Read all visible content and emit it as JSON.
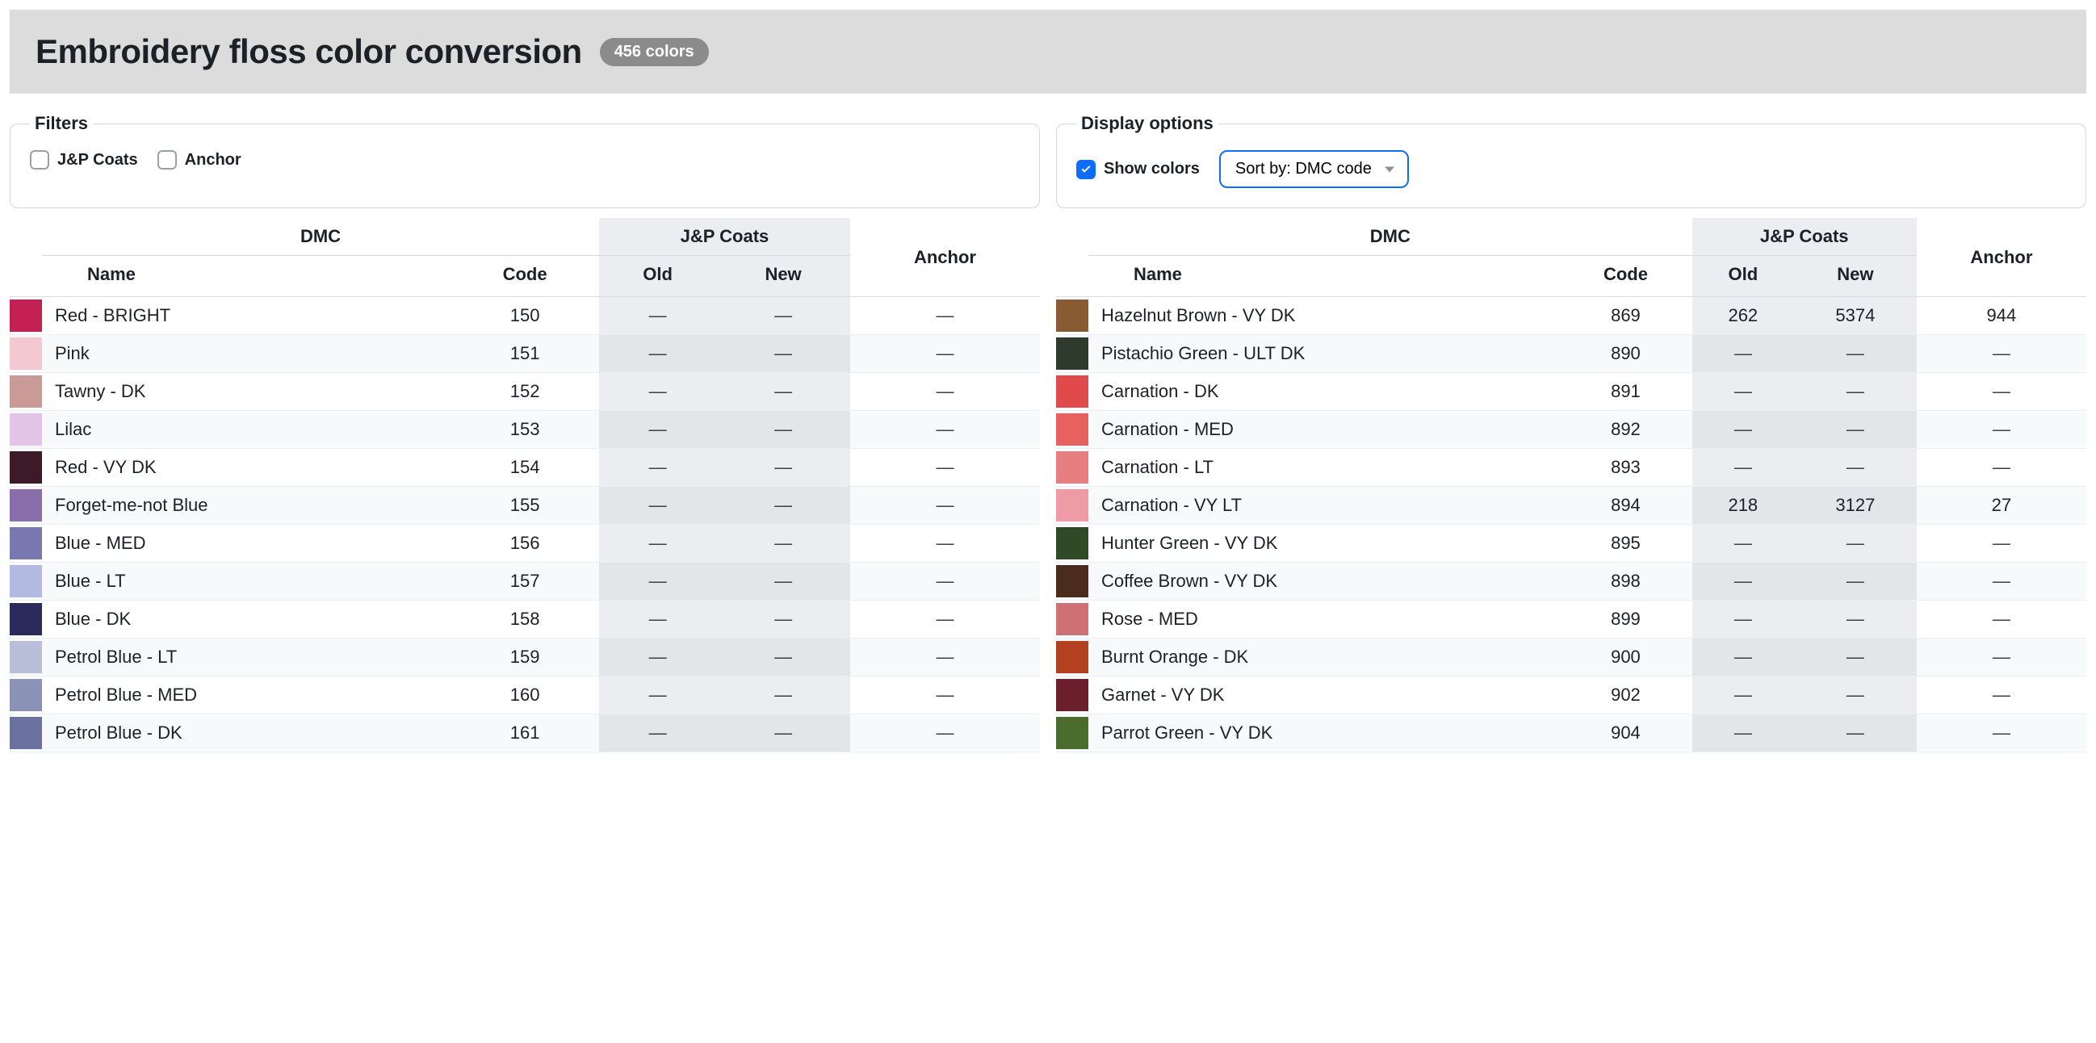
{
  "header": {
    "title": "Embroidery floss color conversion",
    "badge": "456 colors"
  },
  "filters": {
    "legend": "Filters",
    "items": [
      {
        "label": "J&P Coats",
        "checked": false
      },
      {
        "label": "Anchor",
        "checked": false
      }
    ]
  },
  "display": {
    "legend": "Display options",
    "show_colors_label": "Show colors",
    "show_colors_checked": true,
    "sort_label": "Sort by: DMC code"
  },
  "table": {
    "headers": {
      "dmc": "DMC",
      "jp": "J&P Coats",
      "anchor": "Anchor",
      "name": "Name",
      "code": "Code",
      "old": "Old",
      "new": "New"
    },
    "dash": "—"
  },
  "left_rows": [
    {
      "color": "#c42053",
      "name": "Red - BRIGHT",
      "code": "150",
      "old": "",
      "new": "",
      "anchor": ""
    },
    {
      "color": "#f4c8d0",
      "name": "Pink",
      "code": "151",
      "old": "",
      "new": "",
      "anchor": ""
    },
    {
      "color": "#c99a96",
      "name": "Tawny - DK",
      "code": "152",
      "old": "",
      "new": "",
      "anchor": ""
    },
    {
      "color": "#e2c5e6",
      "name": "Lilac",
      "code": "153",
      "old": "",
      "new": "",
      "anchor": ""
    },
    {
      "color": "#3c1a28",
      "name": "Red - VY DK",
      "code": "154",
      "old": "",
      "new": "",
      "anchor": ""
    },
    {
      "color": "#8a6eac",
      "name": "Forget-me-not Blue",
      "code": "155",
      "old": "",
      "new": "",
      "anchor": ""
    },
    {
      "color": "#7a78b0",
      "name": "Blue - MED",
      "code": "156",
      "old": "",
      "new": "",
      "anchor": ""
    },
    {
      "color": "#b3bae2",
      "name": "Blue - LT",
      "code": "157",
      "old": "",
      "new": "",
      "anchor": ""
    },
    {
      "color": "#2b2a5c",
      "name": "Blue - DK",
      "code": "158",
      "old": "",
      "new": "",
      "anchor": ""
    },
    {
      "color": "#b9bfd8",
      "name": "Petrol Blue - LT",
      "code": "159",
      "old": "",
      "new": "",
      "anchor": ""
    },
    {
      "color": "#8b92b8",
      "name": "Petrol Blue - MED",
      "code": "160",
      "old": "",
      "new": "",
      "anchor": ""
    },
    {
      "color": "#6c72a0",
      "name": "Petrol Blue - DK",
      "code": "161",
      "old": "",
      "new": "",
      "anchor": ""
    }
  ],
  "right_rows": [
    {
      "color": "#8a5a32",
      "name": "Hazelnut Brown - VY DK",
      "code": "869",
      "old": "262",
      "new": "5374",
      "anchor": "944"
    },
    {
      "color": "#2e3b2c",
      "name": "Pistachio Green - ULT DK",
      "code": "890",
      "old": "",
      "new": "",
      "anchor": ""
    },
    {
      "color": "#e14a4a",
      "name": "Carnation - DK",
      "code": "891",
      "old": "",
      "new": "",
      "anchor": ""
    },
    {
      "color": "#e7615e",
      "name": "Carnation - MED",
      "code": "892",
      "old": "",
      "new": "",
      "anchor": ""
    },
    {
      "color": "#e77e80",
      "name": "Carnation - LT",
      "code": "893",
      "old": "",
      "new": "",
      "anchor": ""
    },
    {
      "color": "#ef9ba6",
      "name": "Carnation - VY LT",
      "code": "894",
      "old": "218",
      "new": "3127",
      "anchor": "27"
    },
    {
      "color": "#2f4a27",
      "name": "Hunter Green - VY DK",
      "code": "895",
      "old": "",
      "new": "",
      "anchor": ""
    },
    {
      "color": "#4a2b1c",
      "name": "Coffee Brown - VY DK",
      "code": "898",
      "old": "",
      "new": "",
      "anchor": ""
    },
    {
      "color": "#cf7074",
      "name": "Rose - MED",
      "code": "899",
      "old": "",
      "new": "",
      "anchor": ""
    },
    {
      "color": "#b3401f",
      "name": "Burnt Orange - DK",
      "code": "900",
      "old": "",
      "new": "",
      "anchor": ""
    },
    {
      "color": "#6a1f2a",
      "name": "Garnet - VY DK",
      "code": "902",
      "old": "",
      "new": "",
      "anchor": ""
    },
    {
      "color": "#4a6d2e",
      "name": "Parrot Green - VY DK",
      "code": "904",
      "old": "",
      "new": "",
      "anchor": ""
    }
  ]
}
